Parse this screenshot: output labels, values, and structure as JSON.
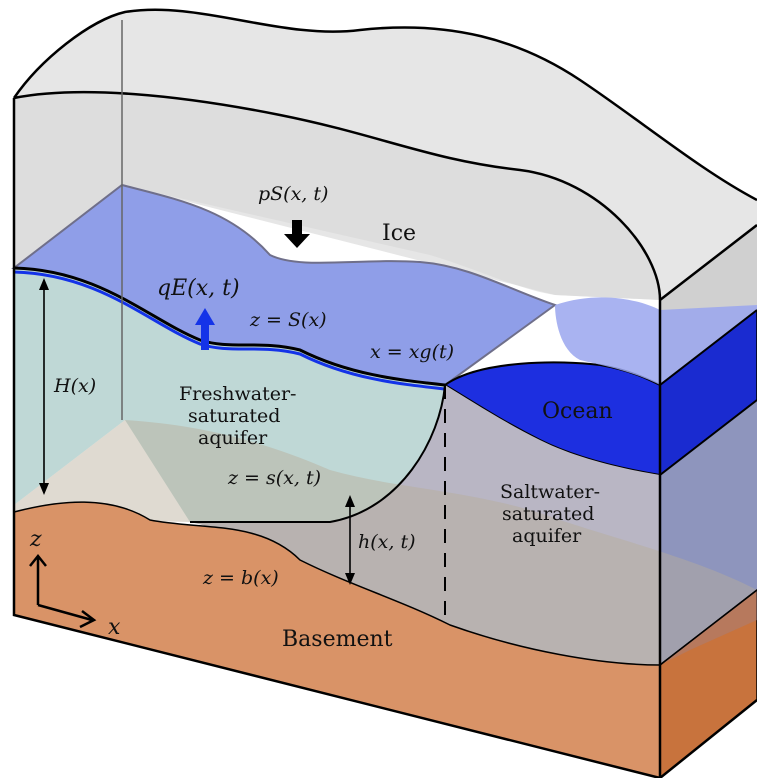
{
  "colors": {
    "ice": "#e8e8e8",
    "ice_shade": "#d9d9d9",
    "meltwater": "#8f9ee8",
    "ocean": "#1d2fe0",
    "ocean_light": "#9aa6ee",
    "fresh_aquifer": "#bfd8d6",
    "salt_aquifer": "#b9b6c4",
    "basement": "#d99367",
    "basement_side": "#c8733d",
    "flux_arrow": "#1433e8"
  },
  "labels": {
    "ice": "Ice",
    "ocean": "Ocean",
    "basement": "Basement",
    "fresh_line1": "Freshwater-",
    "fresh_line2": "saturated",
    "fresh_line3": "aquifer",
    "salt_line1": "Saltwater-",
    "salt_line2": "saturated",
    "salt_line3": "aquifer",
    "pressure": "pS(x, t)",
    "flux": "qE(x, t)",
    "surface": "z = S(x)",
    "grounding": "x = xg(t)",
    "thickness": "H(x)",
    "interface": "z = s(x, t)",
    "interface_height": "h(x, t)",
    "bed": "z = b(x)",
    "axis_z": "z",
    "axis_x": "x"
  }
}
